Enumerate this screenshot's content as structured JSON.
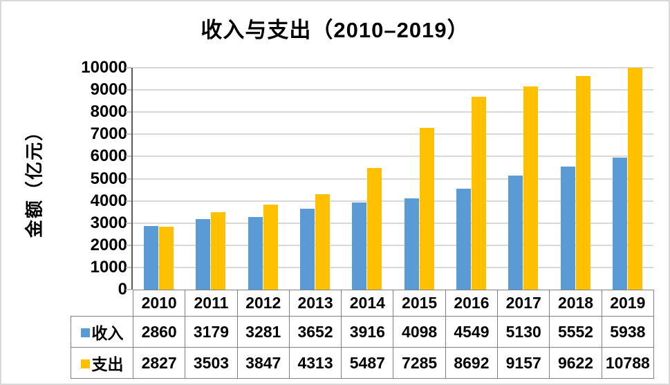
{
  "chart_data": {
    "type": "bar",
    "title": "收入与支出（2010–2019）",
    "ylabel": "金额（亿元）",
    "xlabel": "",
    "categories": [
      "2010",
      "2011",
      "2012",
      "2013",
      "2014",
      "2015",
      "2016",
      "2017",
      "2018",
      "2019"
    ],
    "series": [
      {
        "key": "income",
        "name": "收入",
        "color": "#5B9BD5",
        "values": [
          2860,
          3179,
          3281,
          3652,
          3916,
          4098,
          4549,
          5130,
          5552,
          5938
        ]
      },
      {
        "key": "expense",
        "name": "支出",
        "color": "#FFC000",
        "values": [
          2827,
          3503,
          3847,
          4313,
          5487,
          7285,
          8692,
          9157,
          9622,
          10788
        ]
      }
    ],
    "ylim": [
      0,
      10000
    ],
    "ytick_step": 1000,
    "grid": true,
    "legend_position": "data-table-left",
    "data_table_shown": true
  },
  "colors": {
    "gridline": "#D9D9D9",
    "axis_line": "#595959",
    "table_border": "#7F7F7F",
    "frame_border": "#D9D9D9",
    "background": "#FFFFFF",
    "text": "#000000"
  }
}
